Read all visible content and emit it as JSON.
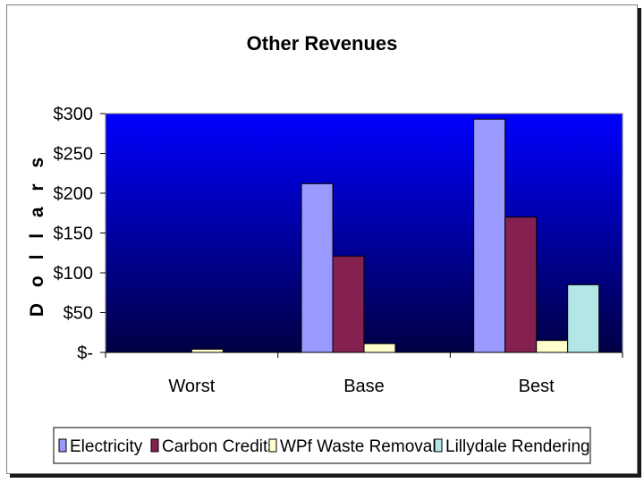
{
  "chart_data": {
    "type": "bar",
    "title": "Other Revenues",
    "xlabel": "",
    "ylabel": "D o l l a r s",
    "categories": [
      "Worst",
      "Base",
      "Best"
    ],
    "ylim": [
      0,
      300
    ],
    "yticks": [
      0,
      50,
      100,
      150,
      200,
      250,
      300
    ],
    "ytick_labels": [
      "$-",
      "$50",
      "$100",
      "$150",
      "$200",
      "$250",
      "$300"
    ],
    "grid": false,
    "legend_position": "bottom",
    "plot_background": "#0000ee",
    "series": [
      {
        "name": "Electricity",
        "color": "#9999ff",
        "values": [
          0,
          212,
          293
        ]
      },
      {
        "name": "Carbon Credits",
        "color": "#852150",
        "values": [
          0,
          121,
          170
        ]
      },
      {
        "name": "WPf Waste Removal",
        "color": "#ffffcc",
        "values": [
          4,
          11,
          15
        ]
      },
      {
        "name": "Lillydale Rendering",
        "color": "#b3e6e6",
        "values": [
          0,
          0,
          85
        ]
      }
    ]
  }
}
